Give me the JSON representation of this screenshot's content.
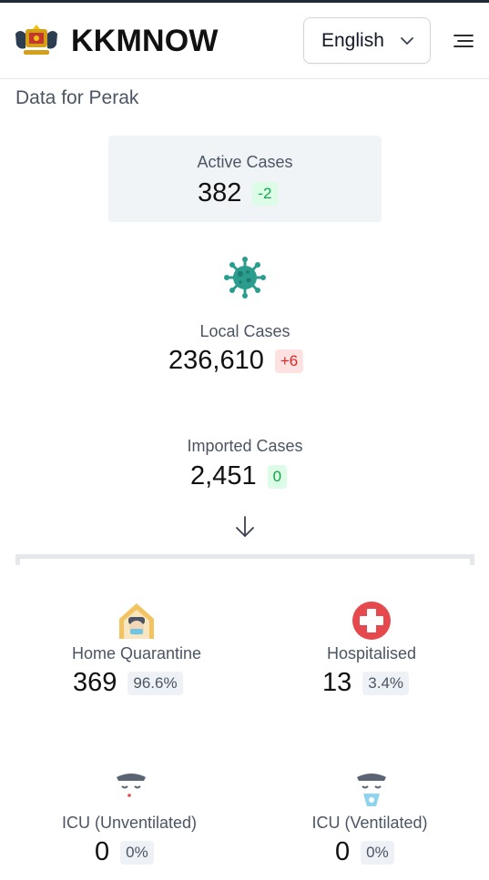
{
  "header": {
    "brand": "KKMNOW",
    "language": "English"
  },
  "subtitle": "Data for Perak",
  "active": {
    "label": "Active Cases",
    "value": "382",
    "delta": "-2"
  },
  "local": {
    "label": "Local Cases",
    "value": "236,610",
    "delta": "+6"
  },
  "imported": {
    "label": "Imported Cases",
    "value": "2,451",
    "delta": "0"
  },
  "home": {
    "label": "Home Quarantine",
    "value": "369",
    "pct": "96.6%"
  },
  "hosp": {
    "label": "Hospitalised",
    "value": "13",
    "pct": "3.4%"
  },
  "icu_unvent": {
    "label": "ICU (Unventilated)",
    "value": "0",
    "pct": "0%"
  },
  "icu_vent": {
    "label": "ICU (Ventilated)",
    "value": "0",
    "pct": "0%"
  },
  "icons": [
    "coat-of-arms-logo",
    "chevron-down-icon",
    "menu-icon",
    "virus-icon",
    "arrow-down-icon",
    "home-quarantine-icon",
    "hospital-cross-icon",
    "icu-unventilated-icon",
    "icu-ventilated-icon"
  ],
  "colors": {
    "green_badge": "#dcfce7",
    "red_badge": "#fee2e2",
    "virus": "#2a9d8f",
    "hospital": "#e5484d"
  }
}
